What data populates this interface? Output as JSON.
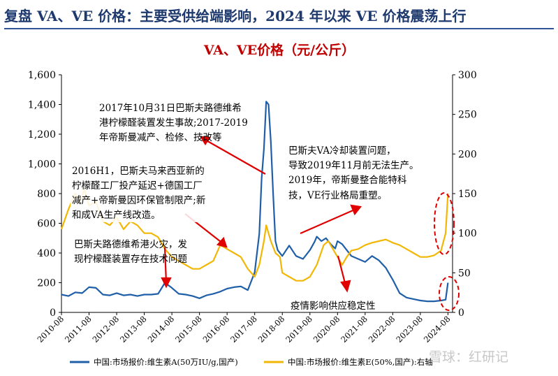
{
  "page": {
    "title": "复盘 VA、VE 价格：主要受供给端影响，2024 年以来 VE 价格震荡上行",
    "watermark": "雪球：红研记"
  },
  "chart_data": {
    "type": "line",
    "title": "VA、VE价格（元/公斤）",
    "x_ticks": [
      "2010-08",
      "2011-08",
      "2012-08",
      "2013-08",
      "2014-08",
      "2015-08",
      "2016-08",
      "2017-08",
      "2018-08",
      "2019-08",
      "2020-08",
      "2021-08",
      "2022-08",
      "2023-08",
      "2024-08"
    ],
    "y_left": {
      "range": [
        0,
        1600
      ],
      "ticks": [
        "0",
        "200",
        "400",
        "600",
        "800",
        "1,000",
        "1,200",
        "1,400",
        "1,600"
      ]
    },
    "y_right": {
      "range": [
        0,
        300
      ],
      "ticks": [
        "0",
        "50",
        "100",
        "150",
        "200",
        "250",
        "300"
      ]
    },
    "grid": false,
    "legend_position": "bottom",
    "series": [
      {
        "name": "中国:市场报价:维生素A(50万IU/g,国产)",
        "axis": "left",
        "color": "#1f5fa8",
        "points": [
          [
            "2010-08",
            120
          ],
          [
            "2010-11",
            110
          ],
          [
            "2011-02",
            135
          ],
          [
            "2011-05",
            130
          ],
          [
            "2011-08",
            170
          ],
          [
            "2011-11",
            165
          ],
          [
            "2012-02",
            120
          ],
          [
            "2012-05",
            115
          ],
          [
            "2012-08",
            130
          ],
          [
            "2012-11",
            115
          ],
          [
            "2013-02",
            120
          ],
          [
            "2013-05",
            110
          ],
          [
            "2013-08",
            120
          ],
          [
            "2013-11",
            120
          ],
          [
            "2014-02",
            125
          ],
          [
            "2014-05",
            200
          ],
          [
            "2014-08",
            165
          ],
          [
            "2014-11",
            125
          ],
          [
            "2015-02",
            120
          ],
          [
            "2015-05",
            110
          ],
          [
            "2015-08",
            95
          ],
          [
            "2015-11",
            115
          ],
          [
            "2016-02",
            125
          ],
          [
            "2016-05",
            140
          ],
          [
            "2016-08",
            160
          ],
          [
            "2016-11",
            170
          ],
          [
            "2017-02",
            175
          ],
          [
            "2017-05",
            150
          ],
          [
            "2017-08",
            270
          ],
          [
            "2017-10",
            530
          ],
          [
            "2017-11",
            900
          ],
          [
            "2017-12",
            1100
          ],
          [
            "2018-01",
            1420
          ],
          [
            "2018-02",
            1400
          ],
          [
            "2018-03",
            1150
          ],
          [
            "2018-04",
            800
          ],
          [
            "2018-05",
            480
          ],
          [
            "2018-06",
            420
          ],
          [
            "2018-08",
            380
          ],
          [
            "2018-11",
            450
          ],
          [
            "2019-02",
            380
          ],
          [
            "2019-05",
            360
          ],
          [
            "2019-08",
            420
          ],
          [
            "2019-10",
            475
          ],
          [
            "2019-11",
            510
          ],
          [
            "2020-01",
            480
          ],
          [
            "2020-03",
            500
          ],
          [
            "2020-05",
            460
          ],
          [
            "2020-07",
            430
          ],
          [
            "2020-08",
            480
          ],
          [
            "2020-10",
            460
          ],
          [
            "2020-12",
            420
          ],
          [
            "2021-02",
            380
          ],
          [
            "2021-05",
            360
          ],
          [
            "2021-08",
            340
          ],
          [
            "2021-11",
            380
          ],
          [
            "2022-02",
            350
          ],
          [
            "2022-05",
            300
          ],
          [
            "2022-08",
            220
          ],
          [
            "2022-11",
            130
          ],
          [
            "2023-02",
            100
          ],
          [
            "2023-05",
            90
          ],
          [
            "2023-08",
            80
          ],
          [
            "2023-11",
            75
          ],
          [
            "2024-02",
            75
          ],
          [
            "2024-05",
            80
          ],
          [
            "2024-07",
            85
          ],
          [
            "2024-08",
            200
          ]
        ]
      },
      {
        "name": "中国:市场报价:维生素E(50%,国产):右轴",
        "axis": "right",
        "color": "#f2b705",
        "points": [
          [
            "2010-08",
            105
          ],
          [
            "2010-11",
            130
          ],
          [
            "2011-02",
            150
          ],
          [
            "2011-04",
            140
          ],
          [
            "2011-06",
            155
          ],
          [
            "2011-08",
            135
          ],
          [
            "2011-11",
            140
          ],
          [
            "2012-02",
            115
          ],
          [
            "2012-05",
            110
          ],
          [
            "2012-08",
            120
          ],
          [
            "2012-11",
            105
          ],
          [
            "2013-02",
            115
          ],
          [
            "2013-05",
            110
          ],
          [
            "2013-08",
            100
          ],
          [
            "2013-11",
            100
          ],
          [
            "2014-02",
            95
          ],
          [
            "2014-05",
            80
          ],
          [
            "2014-08",
            70
          ],
          [
            "2014-11",
            65
          ],
          [
            "2015-02",
            60
          ],
          [
            "2015-05",
            55
          ],
          [
            "2015-08",
            55
          ],
          [
            "2015-11",
            60
          ],
          [
            "2016-02",
            65
          ],
          [
            "2016-05",
            85
          ],
          [
            "2016-08",
            80
          ],
          [
            "2016-11",
            75
          ],
          [
            "2017-02",
            70
          ],
          [
            "2017-05",
            55
          ],
          [
            "2017-08",
            45
          ],
          [
            "2017-10",
            60
          ],
          [
            "2017-12",
            90
          ],
          [
            "2018-01",
            110
          ],
          [
            "2018-03",
            90
          ],
          [
            "2018-05",
            75
          ],
          [
            "2018-07",
            70
          ],
          [
            "2018-08",
            50
          ],
          [
            "2018-11",
            45
          ],
          [
            "2019-02",
            40
          ],
          [
            "2019-05",
            40
          ],
          [
            "2019-08",
            45
          ],
          [
            "2019-11",
            60
          ],
          [
            "2020-02",
            85
          ],
          [
            "2020-04",
            90
          ],
          [
            "2020-06",
            80
          ],
          [
            "2020-08",
            70
          ],
          [
            "2020-10",
            60
          ],
          [
            "2020-12",
            70
          ],
          [
            "2021-02",
            78
          ],
          [
            "2021-05",
            80
          ],
          [
            "2021-08",
            85
          ],
          [
            "2021-11",
            88
          ],
          [
            "2022-02",
            90
          ],
          [
            "2022-05",
            92
          ],
          [
            "2022-08",
            88
          ],
          [
            "2022-11",
            85
          ],
          [
            "2023-02",
            80
          ],
          [
            "2023-05",
            75
          ],
          [
            "2023-08",
            70
          ],
          [
            "2023-11",
            70
          ],
          [
            "2024-02",
            72
          ],
          [
            "2024-05",
            78
          ],
          [
            "2024-07",
            100
          ],
          [
            "2024-08",
            150
          ]
        ]
      }
    ],
    "annotations": [
      {
        "text": [
          "2017年10月31日巴斯夫路德维希",
          "港柠檬醛装置发生事故;2017-2019",
          "年帝斯曼减产、检修、技改等"
        ]
      },
      {
        "text": [
          "巴斯夫VA冷却装置问题，",
          "导致2019年11月前无法生产。",
          "2019年，帝斯曼整合能特科",
          "技，VE行业格局重塑。"
        ]
      },
      {
        "text": [
          "2016H1，巴斯夫马来西亚新的",
          "柠檬醛工厂投产延迟+德国工厂",
          "减产+帝斯曼因环保管制限产;新",
          "和成VA生产线改造。"
        ]
      },
      {
        "text": [
          "巴斯夫路德维希港火灾，发",
          "现柠檬醛装置存在技术问题"
        ]
      },
      {
        "text": [
          "疫情影响供应稳定性"
        ]
      }
    ]
  }
}
